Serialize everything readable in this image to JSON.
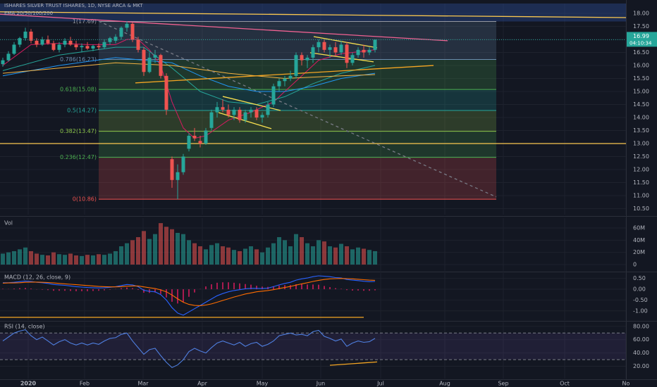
{
  "chart_data": [
    {
      "type": "candlestick",
      "title": "ISHARES SILVER TRUST ISHARES, 1D, NYSE ARCA & MKT",
      "subtitle": "EMA 20/50/100/200",
      "x": [
        1,
        3,
        5,
        7,
        9,
        11,
        13,
        15,
        17,
        19,
        21,
        23,
        25,
        27,
        29,
        31,
        33,
        35,
        37,
        39,
        41,
        43,
        45,
        47,
        49,
        51,
        53,
        55,
        57,
        59,
        61,
        63,
        65,
        67,
        69,
        71,
        73,
        75,
        77,
        79,
        81,
        83,
        85,
        87,
        89,
        91,
        93,
        95,
        97,
        99,
        101,
        103,
        105,
        107,
        109,
        111,
        113,
        115,
        117,
        119,
        121,
        123,
        125,
        127,
        129,
        131,
        133
      ],
      "open": [
        16.05,
        16.2,
        16.45,
        16.8,
        17.05,
        17.3,
        16.95,
        16.8,
        17.0,
        16.85,
        16.6,
        16.8,
        16.95,
        16.8,
        16.7,
        16.75,
        16.65,
        16.75,
        16.7,
        16.9,
        16.95,
        17.1,
        17.45,
        17.6,
        17.0,
        16.6,
        15.75,
        16.3,
        16.4,
        15.6,
        12.4,
        11.6,
        11.9,
        12.8,
        13.3,
        13.1,
        13.0,
        13.6,
        14.2,
        14.4,
        14.3,
        14.1,
        14.3,
        13.9,
        14.2,
        14.3,
        14.0,
        14.1,
        14.5,
        15.2,
        15.4,
        15.5,
        15.6,
        16.4,
        16.2,
        16.3,
        16.7,
        16.9,
        16.6,
        16.7,
        16.5,
        16.8,
        16.1,
        16.4,
        16.6,
        16.5,
        16.6
      ],
      "high": [
        16.3,
        16.55,
        16.9,
        17.1,
        17.45,
        17.4,
        17.05,
        17.1,
        17.15,
        16.95,
        16.9,
        17.05,
        17.1,
        16.95,
        16.85,
        16.9,
        16.8,
        16.85,
        17.0,
        17.1,
        17.2,
        17.5,
        17.7,
        17.65,
        17.1,
        16.7,
        16.5,
        16.6,
        16.45,
        15.7,
        12.5,
        12.2,
        12.6,
        13.4,
        13.6,
        13.3,
        13.6,
        14.3,
        14.6,
        14.7,
        14.5,
        14.4,
        14.4,
        14.3,
        14.4,
        14.4,
        14.2,
        14.6,
        15.3,
        15.5,
        15.6,
        15.8,
        16.5,
        16.5,
        16.4,
        16.8,
        17.0,
        17.0,
        16.8,
        16.9,
        16.95,
        16.9,
        16.5,
        16.7,
        16.8,
        16.7,
        17.0
      ],
      "low": [
        15.95,
        16.15,
        16.4,
        16.7,
        16.95,
        16.85,
        16.7,
        16.75,
        16.8,
        16.55,
        16.5,
        16.7,
        16.75,
        16.6,
        16.5,
        16.6,
        16.55,
        16.6,
        16.65,
        16.8,
        16.85,
        17.0,
        17.3,
        16.9,
        16.5,
        15.6,
        15.7,
        16.1,
        15.5,
        14.1,
        11.3,
        10.86,
        11.8,
        12.7,
        13.1,
        12.85,
        12.95,
        13.5,
        14.0,
        14.2,
        14.0,
        13.9,
        13.8,
        13.8,
        14.0,
        13.9,
        13.8,
        14.0,
        14.4,
        15.0,
        15.2,
        15.4,
        15.5,
        16.0,
        15.9,
        16.1,
        16.5,
        16.5,
        16.3,
        16.4,
        16.4,
        15.9,
        16.0,
        16.3,
        16.3,
        16.4,
        16.5
      ],
      "close": [
        16.2,
        16.45,
        16.8,
        17.05,
        17.3,
        16.95,
        16.8,
        17.0,
        16.85,
        16.6,
        16.8,
        16.95,
        16.8,
        16.7,
        16.75,
        16.65,
        16.75,
        16.7,
        16.9,
        17.05,
        17.1,
        17.45,
        17.6,
        17.0,
        16.6,
        15.75,
        16.3,
        16.4,
        15.6,
        14.3,
        11.6,
        11.9,
        12.5,
        13.3,
        13.2,
        13.0,
        13.5,
        14.2,
        14.4,
        14.3,
        14.1,
        14.3,
        13.9,
        14.2,
        14.3,
        14.0,
        14.1,
        14.5,
        15.2,
        15.4,
        15.5,
        15.6,
        16.4,
        16.2,
        16.3,
        16.7,
        16.9,
        16.6,
        16.7,
        16.5,
        16.8,
        16.1,
        16.4,
        16.6,
        16.5,
        16.6,
        16.99
      ],
      "up_color": "#26a69a",
      "down_color": "#ef5350",
      "xlim": [
        0,
        222
      ],
      "xticks": [
        {
          "value": 10,
          "label": "2020"
        },
        {
          "value": 30,
          "label": "Feb"
        },
        {
          "value": 50.75,
          "label": "Mar"
        },
        {
          "value": 71.75,
          "label": "Apr"
        },
        {
          "value": 93,
          "label": "May"
        },
        {
          "value": 113.75,
          "label": "Jun"
        },
        {
          "value": 135,
          "label": "Jul"
        },
        {
          "value": 157.75,
          "label": "Aug"
        },
        {
          "value": 178.5,
          "label": "Sep"
        },
        {
          "value": 200.25,
          "label": "Oct"
        },
        {
          "value": 222,
          "label": "No"
        }
      ],
      "ylim": [
        10.27,
        18.38
      ],
      "yticks": [
        {
          "value": 10.5,
          "label": "10.50"
        },
        {
          "value": 11,
          "label": "11.00"
        },
        {
          "value": 11.5,
          "label": "11.50"
        },
        {
          "value": 12,
          "label": "12.00"
        },
        {
          "value": 12.5,
          "label": "12.50"
        },
        {
          "value": 13,
          "label": "13.00"
        },
        {
          "value": 13.5,
          "label": "13.50"
        },
        {
          "value": 14,
          "label": "14.00"
        },
        {
          "value": 14.5,
          "label": "14.50"
        },
        {
          "value": 15,
          "label": "15.00"
        },
        {
          "value": 15.5,
          "label": "15.50"
        },
        {
          "value": 16,
          "label": "16.00"
        },
        {
          "value": 16.5,
          "label": "16.50"
        },
        {
          "value": 17,
          "label": "17.00"
        },
        {
          "value": 17.5,
          "label": "17.50"
        },
        {
          "value": 18,
          "label": "18.00"
        }
      ],
      "lines": [
        {
          "color": "#d81b60",
          "x": [
            1,
            11,
            21,
            31,
            41,
            45,
            49,
            53,
            57,
            61,
            65,
            69,
            73,
            81,
            89,
            97,
            105,
            113,
            121,
            133
          ],
          "values": [
            16.0,
            16.8,
            16.85,
            16.8,
            16.8,
            17.0,
            17.0,
            16.6,
            16.0,
            14.6,
            13.6,
            13.2,
            13.3,
            13.9,
            14.2,
            14.6,
            15.4,
            16.2,
            16.45,
            16.6
          ]
        },
        {
          "color": "#26a69a",
          "x": [
            1,
            21,
            41,
            51,
            61,
            71,
            81,
            91,
            101,
            111,
            121,
            133
          ],
          "values": [
            15.8,
            16.4,
            16.7,
            16.7,
            15.9,
            15.0,
            14.6,
            14.5,
            14.8,
            15.3,
            15.7,
            16.0
          ]
        },
        {
          "color": "#2196f3",
          "x": [
            1,
            21,
            41,
            61,
            71,
            81,
            91,
            101,
            111,
            121,
            133
          ],
          "values": [
            15.6,
            16.0,
            16.3,
            16.1,
            15.6,
            15.2,
            15.0,
            15.0,
            15.2,
            15.5,
            15.7
          ]
        },
        {
          "color": "#f5b342",
          "x": [
            1,
            21,
            41,
            61,
            81,
            101,
            121,
            133
          ],
          "values": [
            15.7,
            15.9,
            16.1,
            16.0,
            15.7,
            15.5,
            15.6,
            15.65
          ]
        }
      ],
      "trendlines": [
        {
          "color": "#f06292",
          "points": [
            [
              0,
              17.97
            ],
            [
              158.75,
              16.95
            ]
          ]
        },
        {
          "color": "#f9c74f",
          "points": [
            [
              0,
              18.06
            ],
            [
              222,
              17.84
            ]
          ]
        },
        {
          "color": "#f9c74f",
          "points": [
            [
              0,
              13.0
            ],
            [
              222,
              13.0
            ]
          ]
        },
        {
          "color": "#f5a623",
          "points": [
            [
              48,
              15.33
            ],
            [
              153.75,
              16.0
            ]
          ]
        },
        {
          "color": "#787b86",
          "dashed": true,
          "points": [
            [
              35,
              17.7
            ],
            [
              176,
              10.95
            ]
          ]
        },
        {
          "color": "#f9e04f",
          "points": [
            [
              79,
              14.81
            ],
            [
              99.5,
              14.27
            ]
          ]
        },
        {
          "color": "#f9e04f",
          "points": [
            [
              77.5,
              14.19
            ],
            [
              96.25,
              13.57
            ]
          ]
        },
        {
          "color": "#f9e04f",
          "points": [
            [
              111.25,
              17.11
            ],
            [
              133.75,
              16.68
            ]
          ]
        },
        {
          "color": "#f9e04f",
          "points": [
            [
              110,
              16.49
            ],
            [
              132.5,
              16.14
            ]
          ]
        }
      ],
      "fib": {
        "x": [
          35,
          176
        ],
        "top_color": "#2a4a8f",
        "levels": [
          {
            "label": "1(17.69)",
            "value": 17.69,
            "color": "#9598a1"
          },
          {
            "label": "0.786(16.23)",
            "value": 16.23,
            "color": "#6a8caf"
          },
          {
            "label": "0.618(15.08)",
            "value": 15.08,
            "color": "#4caf50"
          },
          {
            "label": "0.5(14.27)",
            "value": 14.27,
            "color": "#26a69a"
          },
          {
            "label": "0.382(13.47)",
            "value": 13.47,
            "color": "#8bc34a"
          },
          {
            "label": "0.236(12.47)",
            "value": 12.47,
            "color": "#4caf50"
          },
          {
            "label": "0(10.86)",
            "value": 10.86,
            "color": "#ef5350"
          }
        ]
      },
      "last_price": 16.99,
      "countdown": "04:10:34"
    },
    {
      "type": "bar",
      "title": "Vol",
      "values": [
        18,
        20,
        22,
        25,
        28,
        22,
        18,
        16,
        15,
        20,
        17,
        16,
        18,
        15,
        14,
        16,
        15,
        17,
        16,
        18,
        22,
        30,
        35,
        40,
        45,
        55,
        42,
        50,
        68,
        62,
        58,
        52,
        50,
        40,
        35,
        30,
        25,
        32,
        35,
        30,
        28,
        24,
        22,
        26,
        30,
        25,
        20,
        28,
        35,
        45,
        40,
        30,
        50,
        45,
        35,
        30,
        40,
        38,
        30,
        28,
        34,
        30,
        25,
        28,
        26,
        24,
        22
      ],
      "ylim": [
        -10.4,
        76.2
      ],
      "yticks": [
        0,
        {
          "value": 20,
          "label": "20M"
        },
        {
          "value": 40,
          "label": "40M"
        },
        {
          "value": 60,
          "label": "60M"
        }
      ]
    },
    {
      "type": "line",
      "title": "MACD (12, 26, close, 9)",
      "series": [
        {
          "color": "#2962ff",
          "values": [
            0.3,
            0.3,
            0.32,
            0.35,
            0.38,
            0.36,
            0.32,
            0.3,
            0.27,
            0.22,
            0.2,
            0.18,
            0.15,
            0.12,
            0.1,
            0.08,
            0.07,
            0.06,
            0.07,
            0.09,
            0.12,
            0.17,
            0.22,
            0.2,
            0.12,
            -0.05,
            -0.1,
            -0.12,
            -0.25,
            -0.5,
            -0.85,
            -1.1,
            -1.2,
            -1.05,
            -0.9,
            -0.75,
            -0.6,
            -0.45,
            -0.3,
            -0.2,
            -0.12,
            -0.06,
            -0.02,
            0.02,
            0.04,
            0.04,
            0.03,
            0.05,
            0.12,
            0.2,
            0.27,
            0.32,
            0.42,
            0.48,
            0.52,
            0.58,
            0.62,
            0.6,
            0.58,
            0.54,
            0.52,
            0.45,
            0.42,
            0.4,
            0.37,
            0.35,
            0.36
          ]
        },
        {
          "color": "#ff6d00",
          "values": [
            0.28,
            0.29,
            0.29,
            0.3,
            0.32,
            0.33,
            0.33,
            0.32,
            0.31,
            0.29,
            0.27,
            0.25,
            0.23,
            0.21,
            0.19,
            0.17,
            0.15,
            0.13,
            0.12,
            0.11,
            0.11,
            0.12,
            0.14,
            0.15,
            0.15,
            0.11,
            0.07,
            0.03,
            -0.03,
            -0.12,
            -0.27,
            -0.44,
            -0.6,
            -0.7,
            -0.75,
            -0.76,
            -0.73,
            -0.68,
            -0.6,
            -0.52,
            -0.44,
            -0.36,
            -0.29,
            -0.22,
            -0.17,
            -0.12,
            -0.09,
            -0.06,
            -0.02,
            0.03,
            0.08,
            0.13,
            0.19,
            0.25,
            0.3,
            0.36,
            0.41,
            0.45,
            0.48,
            0.49,
            0.5,
            0.49,
            0.48,
            0.46,
            0.44,
            0.42,
            0.41
          ]
        }
      ],
      "histogram_color": "#e91e63",
      "ylim": [
        -1.43,
        0.75
      ],
      "yticks": [
        {
          "value": 0.5,
          "label": "0.50"
        },
        {
          "value": 0,
          "label": "0.00"
        },
        {
          "value": -0.5,
          "label": "-0.50"
        },
        {
          "value": -1,
          "label": "-1.00"
        }
      ],
      "trendlines": [
        {
          "color": "#f5a623",
          "points": [
            [
              0,
              -1.3
            ],
            [
              129,
              -1.3
            ]
          ]
        }
      ]
    },
    {
      "type": "line",
      "title": "RSI (14, close)",
      "series": [
        {
          "color": "#4f7fe0",
          "values": [
            58,
            64,
            70,
            73,
            75,
            66,
            60,
            64,
            58,
            52,
            57,
            60,
            55,
            52,
            55,
            52,
            55,
            53,
            58,
            62,
            63,
            68,
            70,
            58,
            48,
            38,
            45,
            47,
            36,
            26,
            18,
            22,
            30,
            42,
            47,
            43,
            40,
            48,
            55,
            58,
            55,
            52,
            56,
            50,
            54,
            56,
            50,
            53,
            58,
            66,
            68,
            70,
            67,
            68,
            66,
            72,
            74,
            65,
            62,
            58,
            61,
            50,
            55,
            58,
            56,
            57,
            62
          ]
        }
      ],
      "band": [
        30,
        70
      ],
      "band_color": "#7e57c2",
      "ylim": [
        1.5,
        86.2
      ],
      "yticks": [
        {
          "value": 20,
          "label": "20.00"
        },
        {
          "value": 40,
          "label": "40.00"
        },
        {
          "value": 60,
          "label": "60.00"
        },
        {
          "value": 80,
          "label": "80.00"
        }
      ],
      "trendlines": [
        {
          "color": "#f5a623",
          "points": [
            [
              117,
              21.5
            ],
            [
              133.75,
              26.5
            ]
          ]
        }
      ]
    }
  ]
}
